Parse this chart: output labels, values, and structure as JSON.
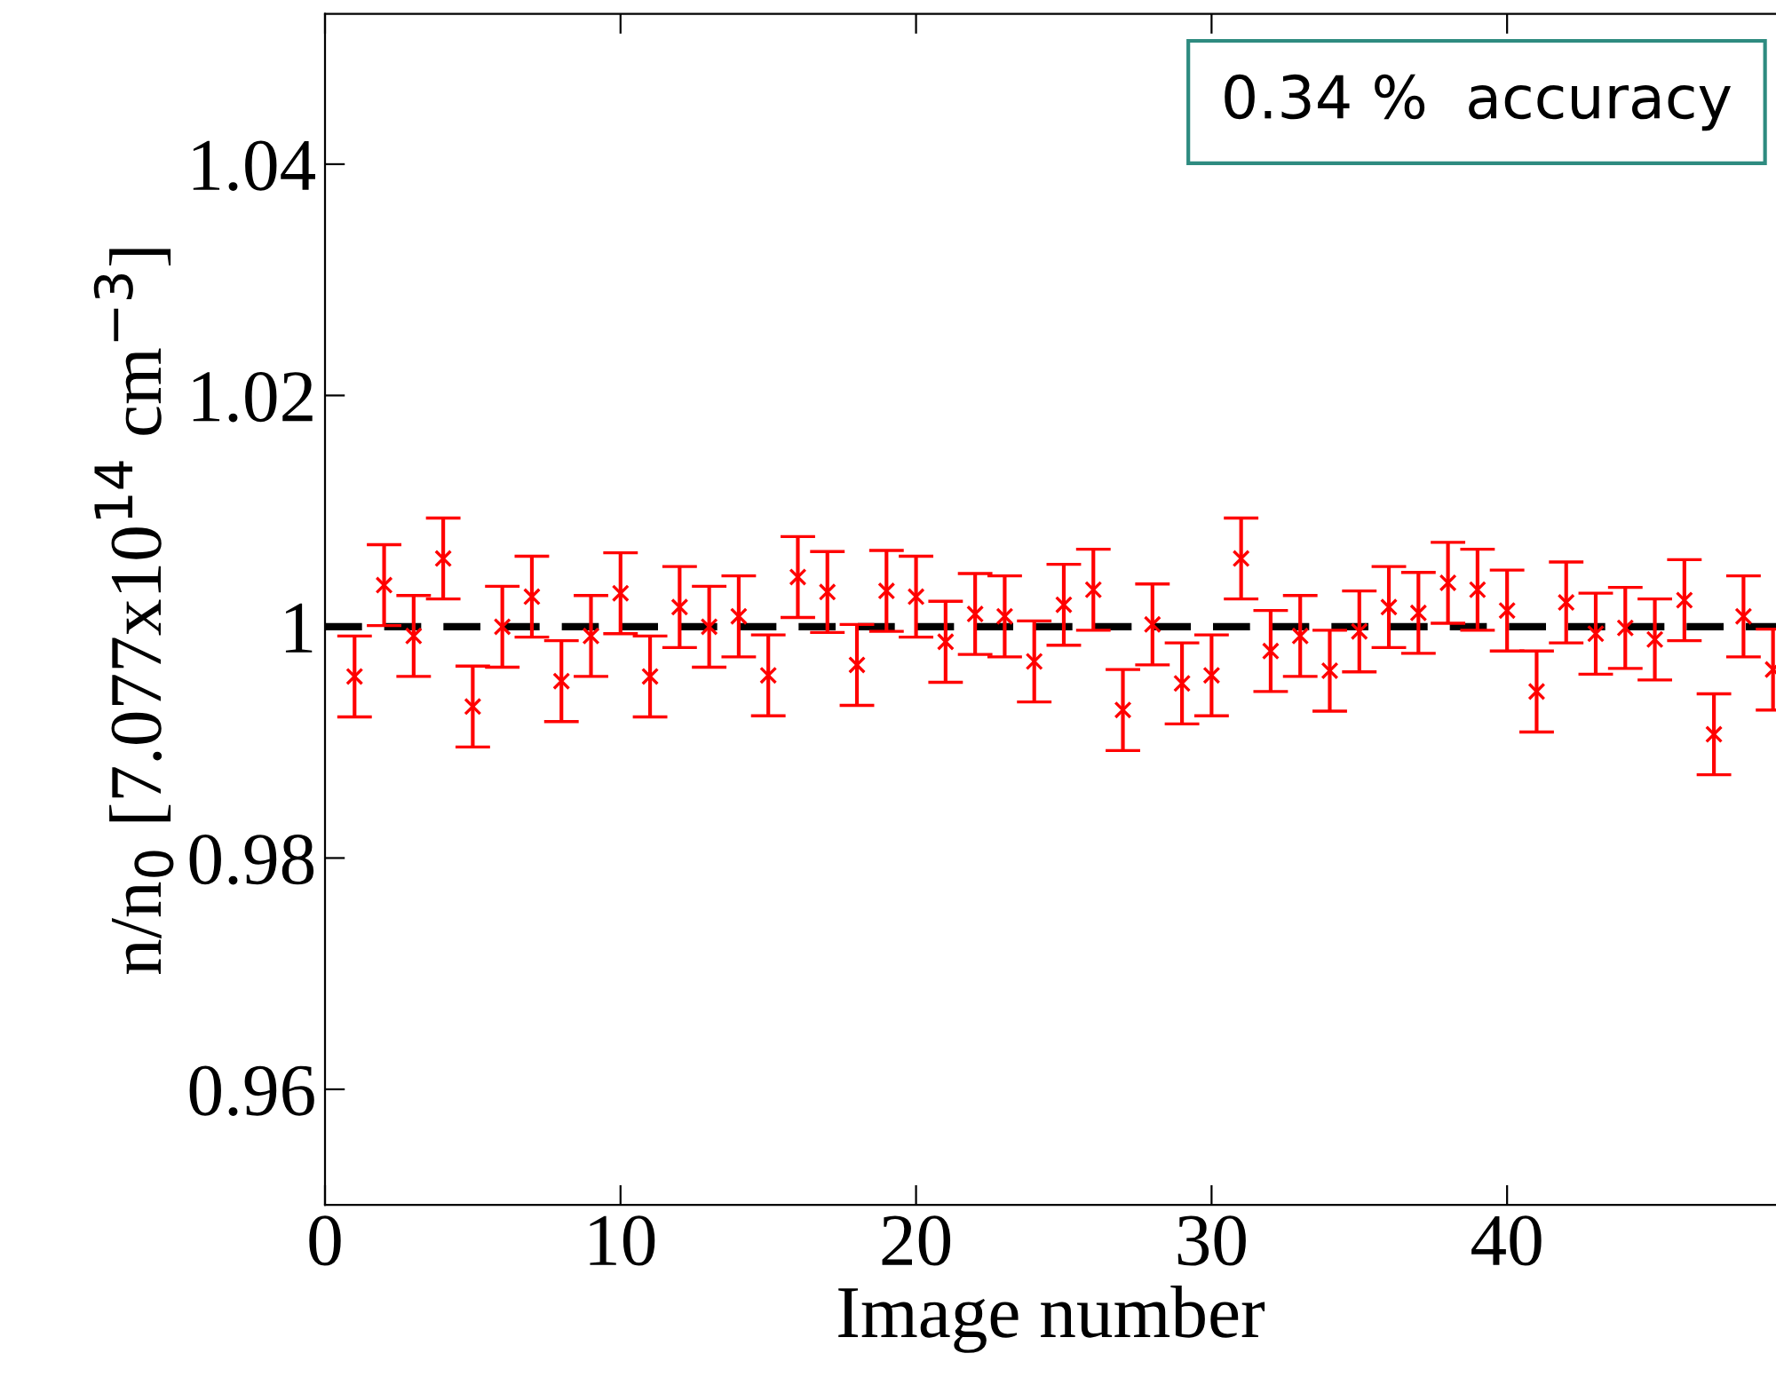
{
  "chart_data": {
    "type": "scatter",
    "xlabel": "Image number",
    "ylabel": "n/n$_{0}$ [7.077x10$^{14}$ cm$^{−3}$]",
    "x": [
      1,
      2,
      3,
      4,
      5,
      6,
      7,
      8,
      9,
      10,
      11,
      12,
      13,
      14,
      15,
      16,
      17,
      18,
      19,
      20,
      21,
      22,
      23,
      24,
      25,
      26,
      27,
      28,
      29,
      30,
      31,
      32,
      33,
      34,
      35,
      36,
      37,
      38,
      39,
      40,
      41,
      42,
      43,
      44,
      45,
      46,
      47,
      48,
      49
    ],
    "series": [
      {
        "color": "#ff0000",
        "marker": "cross",
        "values": [
          0.9957,
          1.0036,
          0.9992,
          1.0059,
          0.9931,
          1.0,
          1.0026,
          0.9953,
          0.9992,
          1.0029,
          0.9957,
          1.0017,
          1.0,
          1.0009,
          0.9958,
          1.0043,
          1.003,
          0.9967,
          1.0031,
          1.0026,
          0.9987,
          1.0011,
          1.0009,
          0.997,
          1.0019,
          1.0032,
          0.9928,
          1.0002,
          0.9951,
          0.9958,
          1.0059,
          0.9979,
          0.9992,
          0.9962,
          0.9996,
          1.0017,
          1.0012,
          1.0038,
          1.0032,
          1.0014,
          0.9944,
          1.0021,
          0.9994,
          0.9999,
          0.9989,
          1.0023,
          0.9907,
          1.0009,
          0.9963
        ],
        "errors": [
          0.0035,
          0.0035,
          0.0035,
          0.0035,
          0.0035,
          0.0035,
          0.0035,
          0.0035,
          0.0035,
          0.0035,
          0.0035,
          0.0035,
          0.0035,
          0.0035,
          0.0035,
          0.0035,
          0.0035,
          0.0035,
          0.0035,
          0.0035,
          0.0035,
          0.0035,
          0.0035,
          0.0035,
          0.0035,
          0.0035,
          0.0035,
          0.0035,
          0.0035,
          0.0035,
          0.0035,
          0.0035,
          0.0035,
          0.0035,
          0.0035,
          0.0035,
          0.0035,
          0.0035,
          0.0035,
          0.0035,
          0.0035,
          0.0035,
          0.0035,
          0.0035,
          0.0035,
          0.0035,
          0.0035,
          0.0035,
          0.0035
        ]
      }
    ],
    "ref_lines": [
      {
        "axis": "y",
        "value": 1,
        "color": "#000000",
        "line_style": "dashed"
      }
    ],
    "annotations": [
      "0.34 %  accuracy"
    ],
    "xlim": [
      0,
      49.1
    ],
    "xticks": [
      0,
      10,
      20,
      30,
      40
    ],
    "ylim": [
      0.95,
      1.053
    ],
    "yticks": [
      0.96,
      0.98,
      1,
      1.02,
      1.04
    ],
    "grid": false,
    "legend": false
  }
}
